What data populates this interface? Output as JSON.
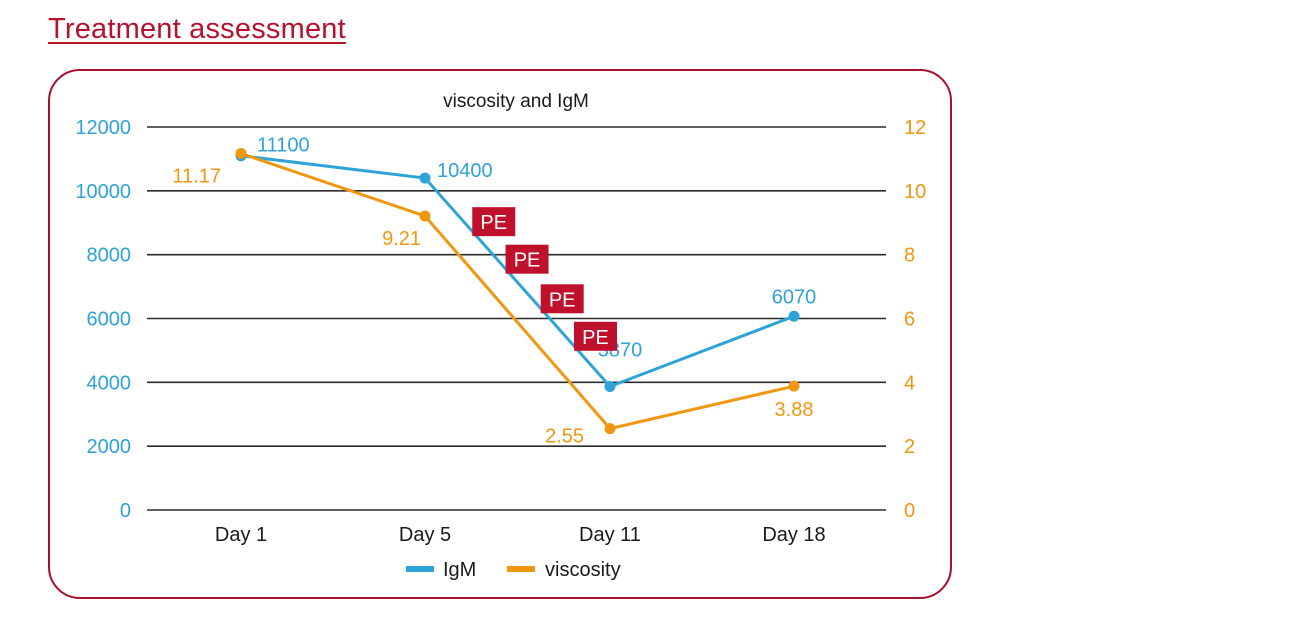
{
  "page": {
    "title": "Treatment assessment"
  },
  "colors": {
    "brand": "#b5122e",
    "igm": "#2ea3d8",
    "viscosity": "#f0960f",
    "pe_badge": "#c0112c",
    "grid": "#2b2b2b",
    "text": "#1a1a1a"
  },
  "chart_data": {
    "type": "line",
    "title": "viscosity and IgM",
    "categories": [
      "Day 1",
      "Day 5",
      "Day 11",
      "Day 18"
    ],
    "series": [
      {
        "name": "IgM",
        "axis": "left",
        "values": [
          11100,
          10400,
          3870,
          6070
        ],
        "labels": [
          "11100",
          "10400",
          "3870",
          "6070"
        ]
      },
      {
        "name": "viscosity",
        "axis": "right",
        "values": [
          11.17,
          9.21,
          2.55,
          3.88
        ],
        "labels": [
          "11.17",
          "9.21",
          "2.55",
          "3.88"
        ]
      }
    ],
    "y_left": {
      "range": [
        0,
        12000
      ],
      "ticks": [
        "0",
        "2000",
        "4000",
        "6000",
        "8000",
        "10000",
        "12000"
      ]
    },
    "y_right": {
      "range": [
        0,
        12
      ],
      "ticks": [
        "0",
        "2",
        "4",
        "6",
        "8",
        "10",
        "12"
      ]
    },
    "grid": true,
    "legend": {
      "position": "bottom",
      "entries": [
        "IgM",
        "viscosity"
      ]
    },
    "annotations": [
      {
        "text": "PE",
        "between": [
          "Day 5",
          "Day 11"
        ],
        "count": 4
      }
    ],
    "annotation_labels": [
      "PE",
      "PE",
      "PE",
      "PE"
    ]
  }
}
